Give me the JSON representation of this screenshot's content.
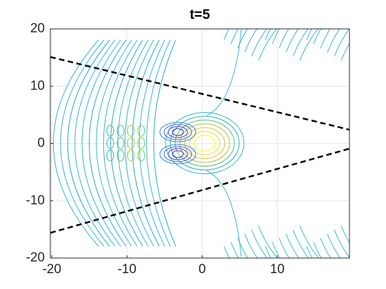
{
  "chart_data": {
    "type": "line",
    "title": "t=5",
    "xlim": [
      -20.2,
      19.6
    ],
    "xticks": [
      -20,
      -10,
      0,
      10
    ],
    "ylim": [
      -20,
      20
    ],
    "yticks": [
      -20,
      -10,
      0,
      10,
      20
    ],
    "grid": true,
    "series": [
      {
        "color": "#000000",
        "x": [
          -20.2,
          19.6
        ],
        "values": [
          15.1,
          2.4
        ]
      },
      {
        "color": "#000000",
        "x": [
          -20.2,
          19.6
        ],
        "values": [
          -15.6,
          -0.9
        ]
      }
    ]
  }
}
